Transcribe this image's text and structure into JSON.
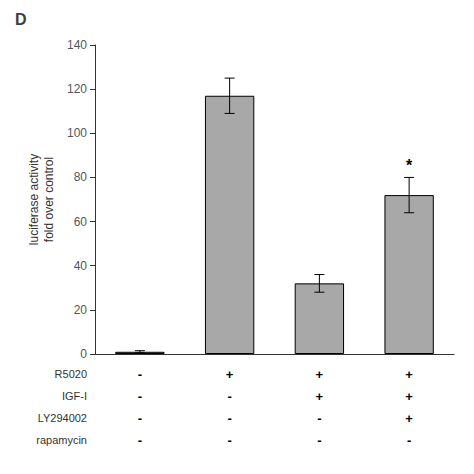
{
  "chart_data": {
    "type": "bar",
    "title": "D",
    "ylabel": "luciferase activity\nfold over control",
    "categories": [
      null,
      null,
      null,
      null
    ],
    "values": [
      1,
      117,
      32,
      72
    ],
    "errors": [
      0.5,
      8,
      4,
      8
    ],
    "color": "#a8a8a8",
    "ylim": [
      0,
      140
    ],
    "yticks": [
      0,
      20,
      40,
      60,
      80,
      100,
      120,
      140
    ],
    "grid": false,
    "tick_labels": "y",
    "annotations": [
      {
        "text": "*",
        "index": 3
      }
    ],
    "table_rows": [
      "R5020",
      "IGF-I",
      "LY294002",
      "rapamycin"
    ],
    "table_data": [
      [
        "-",
        "+",
        "+",
        "+"
      ],
      [
        "-",
        "-",
        "+",
        "+"
      ],
      [
        "-",
        "-",
        "-",
        "+"
      ],
      [
        "-",
        "-",
        "-",
        "-"
      ]
    ]
  }
}
